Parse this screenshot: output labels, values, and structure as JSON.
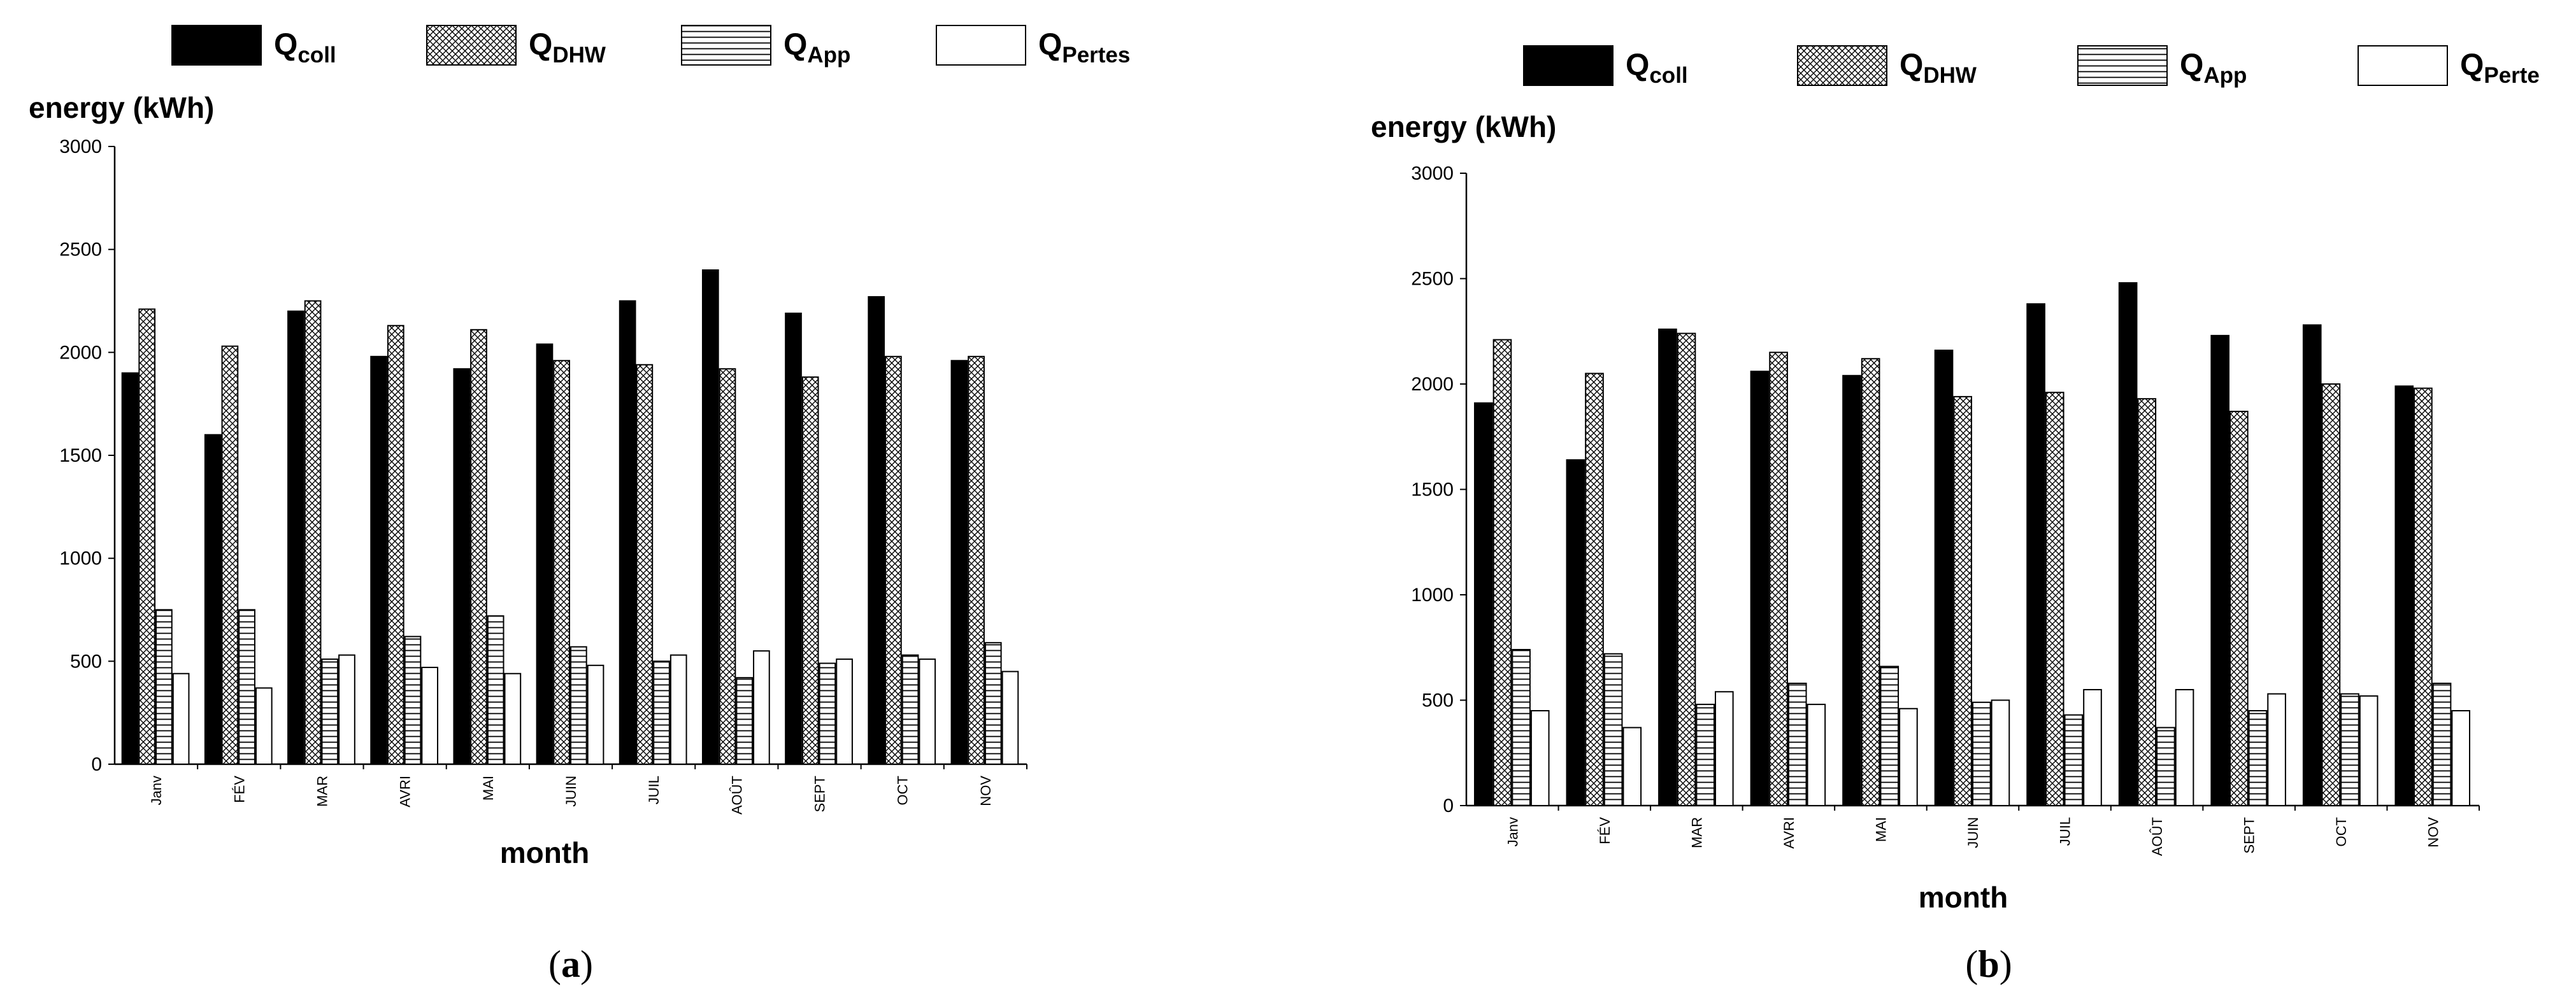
{
  "chart_data": [
    {
      "type": "bar",
      "panel_label": "a",
      "ylabel": "energy (kWh)",
      "xlabel": "month",
      "ylim": [
        0,
        3000
      ],
      "yticks": [
        0,
        500,
        1000,
        1500,
        2000,
        2500,
        3000
      ],
      "categories": [
        "Janv",
        "FÉV",
        "MAR",
        "AVRI",
        "MAI",
        "JUIN",
        "JUIL",
        "AOÛT",
        "SEPT",
        "OCT",
        "NOV"
      ],
      "legend_position": "top",
      "series": [
        {
          "name": "Q",
          "sub": "coll",
          "pattern": "solid",
          "values": [
            1900,
            1600,
            2200,
            1980,
            1920,
            2040,
            2250,
            2400,
            2190,
            2270,
            1960
          ]
        },
        {
          "name": "Q",
          "sub": "DHW",
          "pattern": "crosshatch",
          "values": [
            2210,
            2030,
            2250,
            2130,
            2110,
            1960,
            1940,
            1920,
            1880,
            1980,
            1980
          ]
        },
        {
          "name": "Q",
          "sub": "App",
          "pattern": "horizontal-lines",
          "values": [
            750,
            750,
            510,
            620,
            720,
            570,
            500,
            420,
            490,
            530,
            590
          ]
        },
        {
          "name": "Q",
          "sub": "Pertes",
          "pattern": "empty",
          "values": [
            440,
            370,
            530,
            470,
            440,
            480,
            530,
            550,
            510,
            510,
            450
          ]
        }
      ]
    },
    {
      "type": "bar",
      "panel_label": "b",
      "ylabel": "energy (kWh)",
      "xlabel": "month",
      "ylim": [
        0,
        3000
      ],
      "yticks": [
        0,
        500,
        1000,
        1500,
        2000,
        2500,
        3000
      ],
      "categories": [
        "Janv",
        "FÉV",
        "MAR",
        "AVRI",
        "MAI",
        "JUIN",
        "JUIL",
        "AOÛT",
        "SEPT",
        "OCT",
        "NOV"
      ],
      "legend_position": "top",
      "series": [
        {
          "name": "Q",
          "sub": "coll",
          "pattern": "solid",
          "values": [
            1910,
            1640,
            2260,
            2060,
            2040,
            2160,
            2380,
            2480,
            2230,
            2280,
            1990
          ]
        },
        {
          "name": "Q",
          "sub": "DHW",
          "pattern": "crosshatch",
          "values": [
            2210,
            2050,
            2240,
            2150,
            2120,
            1940,
            1960,
            1930,
            1870,
            2000,
            1980
          ]
        },
        {
          "name": "Q",
          "sub": "App",
          "pattern": "horizontal-lines",
          "values": [
            740,
            720,
            480,
            580,
            660,
            490,
            430,
            370,
            450,
            530,
            580
          ]
        },
        {
          "name": "Q",
          "sub": "Perte",
          "pattern": "empty",
          "values": [
            450,
            370,
            540,
            480,
            460,
            500,
            550,
            550,
            530,
            520,
            450
          ]
        }
      ]
    }
  ]
}
